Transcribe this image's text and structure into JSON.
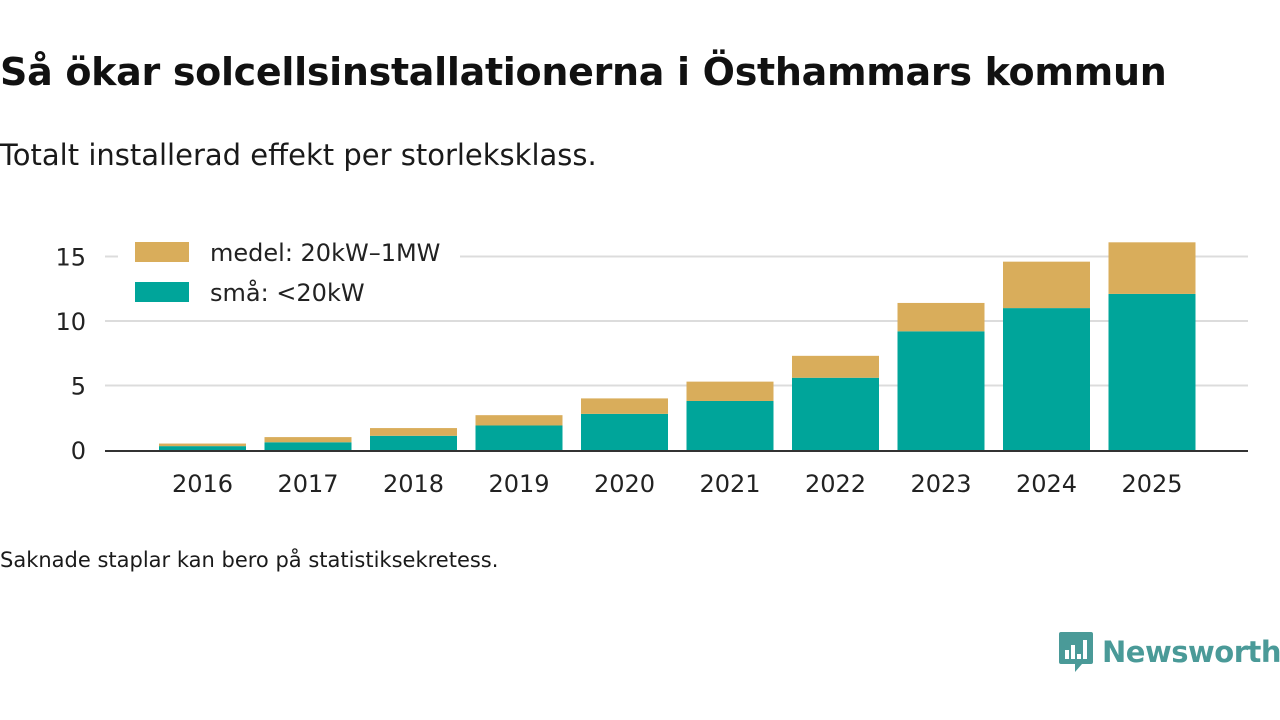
{
  "title": "Så ökar solcellsinstallationerna i Östhammars kommun",
  "subtitle": "Totalt installerad effekt per storleksklass.",
  "footnote": "Saknade staplar kan bero på statistiksekretess.",
  "brand": {
    "name": "Newsworthy",
    "color": "#4a9a98",
    "icon": "newsworthy-chart-bubble-icon"
  },
  "chart_data": {
    "type": "bar",
    "stacked": true,
    "title": "Så ökar solcellsinstallationerna i Östhammars kommun",
    "subtitle": "Totalt installerad effekt per storleksklass.",
    "xlabel": "",
    "ylabel": "",
    "categories": [
      "2016",
      "2017",
      "2018",
      "2019",
      "2020",
      "2021",
      "2022",
      "2023",
      "2024",
      "2025"
    ],
    "series": [
      {
        "name": "små: <20kW",
        "color": "#00a59a",
        "values": [
          0.3,
          0.6,
          1.1,
          1.9,
          2.8,
          3.8,
          5.6,
          9.2,
          11.0,
          12.1
        ]
      },
      {
        "name": "medel: 20kW–1MW",
        "color": "#d9ad5b",
        "values": [
          0.2,
          0.4,
          0.6,
          0.8,
          1.2,
          1.5,
          1.7,
          2.2,
          3.6,
          4.0
        ]
      }
    ],
    "legend_order": [
      "medel: 20kW–1MW",
      "små: <20kW"
    ],
    "legend_position": "top-left",
    "ylim": [
      0,
      16
    ],
    "yticks": [
      0,
      5,
      10,
      15
    ],
    "grid": true
  }
}
